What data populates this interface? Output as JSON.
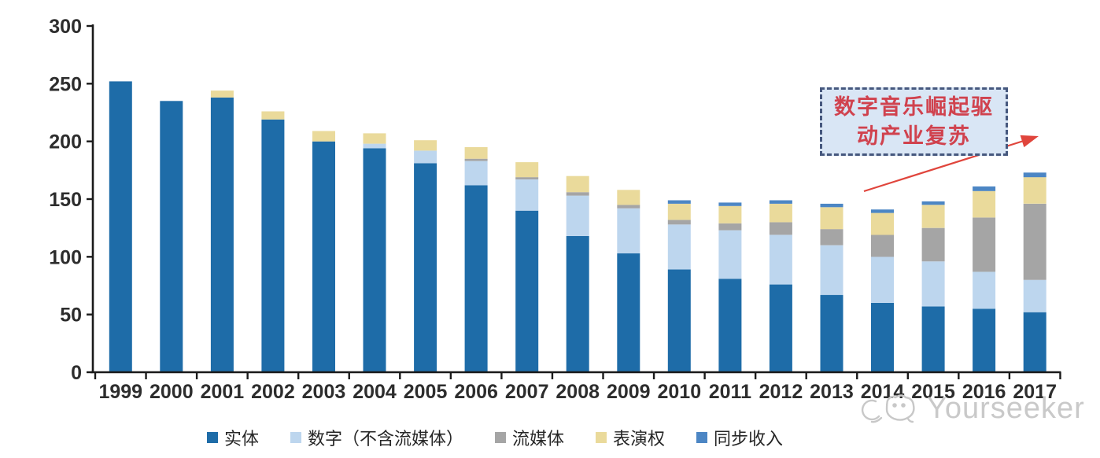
{
  "chart_data": {
    "type": "bar",
    "stacked": true,
    "title": "",
    "xlabel": "",
    "ylabel": "",
    "ylim": [
      0,
      300
    ],
    "y_ticks": [
      0,
      50,
      100,
      150,
      200,
      250,
      300
    ],
    "grid": false,
    "legend_position": "bottom",
    "categories": [
      "1999",
      "2000",
      "2001",
      "2002",
      "2003",
      "2004",
      "2005",
      "2006",
      "2007",
      "2008",
      "2009",
      "2010",
      "2011",
      "2012",
      "2013",
      "2014",
      "2015",
      "2016",
      "2017"
    ],
    "series": [
      {
        "name": "实体",
        "color": "#1e6ca8",
        "values": [
          252,
          235,
          238,
          219,
          200,
          194,
          181,
          162,
          140,
          118,
          103,
          89,
          81,
          76,
          67,
          60,
          57,
          55,
          52
        ]
      },
      {
        "name": "数字（不含流媒体）",
        "color": "#bdd6ee",
        "values": [
          0,
          0,
          0,
          0,
          0,
          4,
          11,
          21,
          27,
          35,
          39,
          39,
          42,
          43,
          43,
          40,
          39,
          32,
          28
        ]
      },
      {
        "name": "流媒体",
        "color": "#a5a5a5",
        "values": [
          0,
          0,
          0,
          0,
          0,
          0,
          0,
          2,
          2,
          3,
          3,
          4,
          6,
          11,
          14,
          19,
          29,
          47,
          66
        ]
      },
      {
        "name": "表演权",
        "color": "#eada9b",
        "values": [
          0,
          0,
          6,
          7,
          9,
          9,
          9,
          10,
          13,
          14,
          13,
          14,
          15,
          16,
          19,
          19,
          20,
          23,
          23
        ]
      },
      {
        "name": "同步收入",
        "color": "#4c86c4",
        "values": [
          0,
          0,
          0,
          0,
          0,
          0,
          0,
          0,
          0,
          0,
          0,
          3,
          3,
          3,
          3,
          3,
          3,
          4,
          4
        ]
      }
    ],
    "axis_color": "#1a1a1a",
    "tick_label_color": "#2d2d2d"
  },
  "annotation": {
    "line1": "数字音乐崛起驱",
    "line2": "动产业复苏",
    "text_color": "#d0424e",
    "box_fill": "#d9e6f5",
    "border_color": "#46587e",
    "arrow_color": "#e0453c"
  },
  "watermark": {
    "text": "Yourseeker",
    "color": "#c9c9c9",
    "logo": "cat-sketch-logo"
  }
}
